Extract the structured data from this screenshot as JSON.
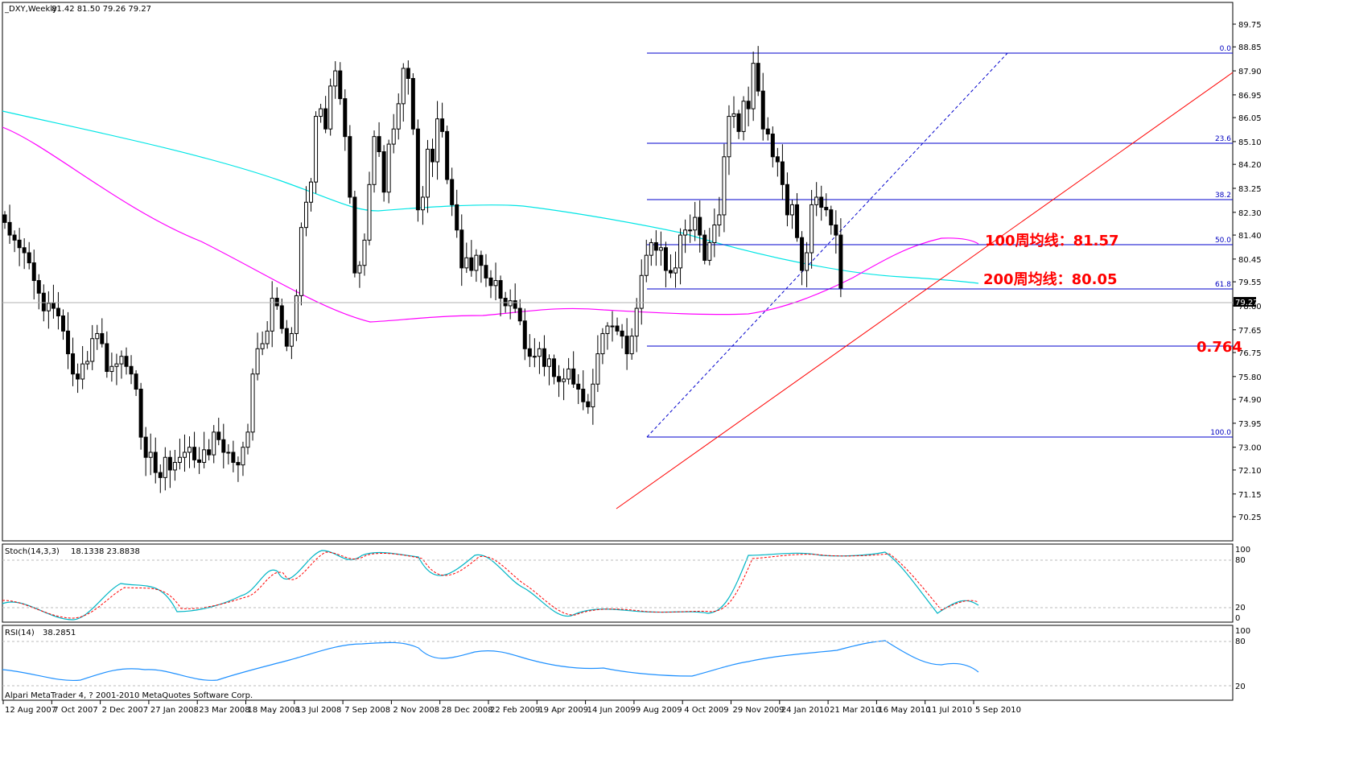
{
  "header": {
    "symbol": "_DXY,Weekly",
    "ohlc": "81.42 81.50 79.26 79.27",
    "current_price": "79.27"
  },
  "stoch": {
    "label": "Stoch(14,3,3)",
    "values": "18.1338 23.8838",
    "levels": [
      "100",
      "80",
      "20",
      "0"
    ]
  },
  "rsi": {
    "label": "RSI(14)",
    "value": "38.2851",
    "levels": [
      "100",
      "80",
      "20"
    ]
  },
  "footer": "Alpari MetaTrader 4, ? 2001-2010 MetaQuotes Software Corp.",
  "annotations": {
    "ma100": "100周均线：81.57",
    "ma200": "200周均线：80.05",
    "fib_ext": "0.764"
  },
  "fib_labels": [
    "0.0",
    "23.6",
    "38.2",
    "50.0",
    "61.8",
    "100.0"
  ],
  "colors": {
    "ma100": "#ff00ff",
    "ma200": "#00e5e5",
    "fib": "#0000cc",
    "trend": "#ff0000",
    "stoch_main": "#00b5c5",
    "stoch_signal": "#ff0000",
    "rsi": "#1e90ff"
  },
  "chart_data": {
    "type": "candlestick",
    "symbol": "_DXY",
    "timeframe": "Weekly",
    "y_ticks": [
      "89.75",
      "88.85",
      "87.90",
      "86.95",
      "86.05",
      "85.10",
      "84.20",
      "83.25",
      "82.30",
      "81.40",
      "80.45",
      "79.55",
      "78.60",
      "77.65",
      "76.75",
      "75.80",
      "74.90",
      "73.95",
      "73.00",
      "72.10",
      "71.15",
      "70.25"
    ],
    "ylim": [
      70.25,
      89.75
    ],
    "x_ticks": [
      "12 Aug 2007",
      "7 Oct 2007",
      "2 Dec 2007",
      "27 Jan 2008",
      "23 Mar 2008",
      "18 May 2008",
      "13 Jul 2008",
      "7 Sep 2008",
      "2 Nov 2008",
      "28 Dec 2008",
      "22 Feb 2009",
      "19 Apr 2009",
      "14 Jun 2009",
      "9 Aug 2009",
      "4 Oct 2009",
      "29 Nov 2009",
      "24 Jan 2010",
      "21 Mar 2010",
      "16 May 2010",
      "11 Jul 2010",
      "5 Sep 2010"
    ],
    "closes": [
      81.9,
      81.4,
      81.2,
      80.9,
      80.7,
      80.3,
      79.6,
      79.1,
      78.4,
      78.7,
      78.5,
      78.2,
      77.6,
      76.7,
      75.9,
      75.7,
      76.3,
      76.4,
      77.3,
      77.5,
      77.1,
      76.0,
      76.2,
      76.3,
      76.6,
      76.2,
      75.9,
      75.3,
      73.4,
      72.6,
      72.8,
      72.0,
      71.8,
      72.6,
      72.1,
      72.4,
      72.6,
      72.8,
      73.0,
      72.5,
      72.4,
      72.9,
      72.7,
      73.6,
      73.3,
      72.8,
      72.8,
      72.4,
      72.3,
      73.0,
      73.6,
      75.9,
      76.9,
      77.1,
      77.6,
      78.9,
      78.6,
      77.7,
      77.0,
      77.5,
      79.0,
      81.7,
      82.7,
      83.5,
      86.1,
      86.4,
      85.6,
      87.3,
      87.9,
      86.8,
      85.3,
      82.9,
      79.9,
      80.2,
      81.2,
      83.4,
      85.3,
      84.7,
      83.1,
      85.0,
      85.6,
      86.6,
      88.0,
      87.6,
      85.6,
      82.4,
      82.9,
      84.8,
      84.3,
      86.0,
      85.5,
      83.6,
      82.6,
      81.6,
      80.1,
      80.5,
      80.0,
      80.6,
      80.2,
      79.7,
      79.4,
      79.6,
      78.9,
      78.6,
      78.8,
      78.5,
      78.0,
      76.9,
      76.6,
      76.6,
      76.9,
      76.2,
      76.5,
      75.8,
      75.6,
      75.7,
      76.1,
      75.5,
      75.3,
      74.8,
      74.6,
      75.5,
      76.7,
      77.5,
      77.8,
      77.8,
      77.6,
      77.4,
      76.7,
      77.4,
      78.5,
      79.8,
      80.6,
      81.1,
      80.8,
      80.9,
      80.0,
      79.9,
      80.1,
      81.4,
      81.6,
      81.6,
      82.1,
      81.4,
      80.4,
      81.1,
      81.8,
      82.2,
      84.5,
      86.1,
      86.2,
      85.5,
      86.7,
      86.4,
      88.2,
      87.1,
      85.6,
      85.4,
      84.5,
      84.3,
      83.4,
      82.2,
      82.6,
      81.3,
      80.0,
      80.7,
      82.6,
      82.9,
      82.5,
      82.4,
      81.8,
      81.4,
      79.3
    ]
  }
}
